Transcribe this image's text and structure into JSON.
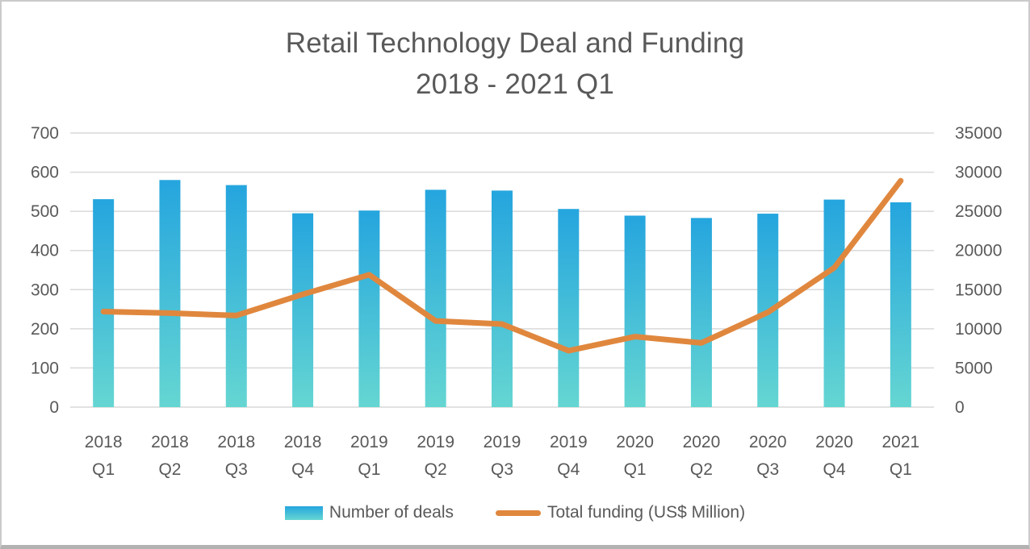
{
  "title": {
    "line1": "Retail Technology Deal and Funding",
    "line2": "2018 - 2021 Q1"
  },
  "chart_data": {
    "type": "combo-bar-line",
    "categories": [
      "2018 Q1",
      "2018 Q2",
      "2018 Q3",
      "2018 Q4",
      "2019 Q1",
      "2019 Q2",
      "2019 Q3",
      "2019 Q4",
      "2020 Q1",
      "2020 Q2",
      "2020 Q3",
      "2020 Q4",
      "2021 Q1"
    ],
    "series": [
      {
        "name": "Number of deals",
        "type": "bar",
        "axis": "left",
        "values": [
          531,
          580,
          567,
          495,
          502,
          555,
          553,
          506,
          489,
          483,
          494,
          530,
          523
        ]
      },
      {
        "name": "Total funding (US$ Million)",
        "type": "line",
        "axis": "right",
        "values": [
          12200,
          12000,
          11700,
          14400,
          16900,
          11000,
          10600,
          7200,
          9000,
          8200,
          12100,
          17800,
          28900
        ]
      }
    ],
    "left_axis": {
      "min": 0,
      "max": 700,
      "step": 100,
      "tick_labels": [
        "0",
        "100",
        "200",
        "300",
        "400",
        "500",
        "600",
        "700"
      ]
    },
    "right_axis": {
      "min": 0,
      "max": 35000,
      "step": 5000,
      "tick_labels": [
        "0",
        "5000",
        "10000",
        "15000",
        "20000",
        "25000",
        "30000",
        "35000"
      ]
    },
    "grid": true,
    "legend_position": "bottom"
  },
  "colors": {
    "bar_gradient_top": "#25a5de",
    "bar_gradient_bottom": "#65d6d2",
    "line": "#e0873e",
    "text": "#595959",
    "gridline": "#d9d9d9"
  }
}
